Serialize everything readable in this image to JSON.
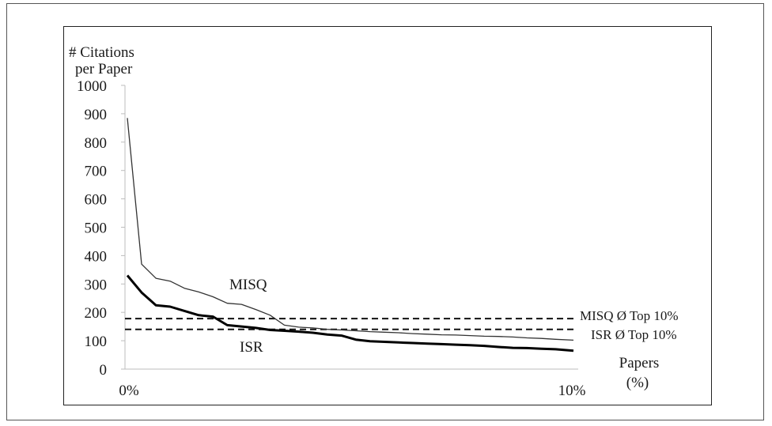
{
  "chart_data": {
    "type": "line",
    "ylabel_line1": "# Citations",
    "ylabel_line2": "per Paper",
    "xlabel_line1": "Papers",
    "xlabel_line2": "(%)",
    "ylim": [
      0,
      1000
    ],
    "yticks": [
      0,
      100,
      200,
      300,
      400,
      500,
      600,
      700,
      800,
      900,
      1000
    ],
    "ytick_labels": [
      "0",
      "100",
      "200",
      "300",
      "400",
      "500",
      "600",
      "700",
      "800",
      "900",
      "1000"
    ],
    "xlim": [
      0,
      10
    ],
    "xtick_labels": [
      "0%",
      "10%"
    ],
    "xtick_values": [
      0,
      10
    ],
    "grid": false,
    "series": [
      {
        "name": "MISQ",
        "color": "#333333",
        "x": [
          0.0,
          0.32,
          0.64,
          0.96,
          1.28,
          1.6,
          1.92,
          2.24,
          2.56,
          2.88,
          3.2,
          3.52,
          3.84,
          4.16,
          4.48,
          4.8,
          5.12,
          5.44,
          5.76,
          6.08,
          6.4,
          6.72,
          7.04,
          7.36,
          7.68,
          8.0,
          8.32,
          8.64,
          8.96,
          9.28,
          9.6,
          10.0
        ],
        "y": [
          885,
          370,
          320,
          310,
          285,
          272,
          255,
          232,
          228,
          210,
          190,
          155,
          148,
          145,
          140,
          138,
          135,
          132,
          130,
          128,
          125,
          123,
          121,
          120,
          118,
          116,
          115,
          113,
          110,
          108,
          105,
          102
        ]
      },
      {
        "name": "ISR",
        "color": "#000000",
        "x": [
          0.0,
          0.32,
          0.64,
          0.96,
          1.28,
          1.6,
          1.92,
          2.24,
          2.56,
          2.88,
          3.2,
          3.52,
          3.84,
          4.16,
          4.48,
          4.8,
          5.12,
          5.44,
          5.76,
          6.08,
          6.4,
          6.72,
          7.04,
          7.36,
          7.68,
          8.0,
          8.32,
          8.64,
          8.96,
          9.28,
          9.6,
          10.0
        ],
        "y": [
          330,
          270,
          225,
          220,
          205,
          190,
          185,
          155,
          150,
          145,
          138,
          135,
          132,
          128,
          122,
          118,
          104,
          98,
          96,
          94,
          92,
          90,
          88,
          86,
          84,
          82,
          78,
          75,
          74,
          72,
          70,
          65
        ]
      }
    ],
    "reference_lines": [
      {
        "name": "MISQ Ø Top 10%",
        "y": 178
      },
      {
        "name": "ISR Ø Top 10%",
        "y": 140
      }
    ]
  }
}
